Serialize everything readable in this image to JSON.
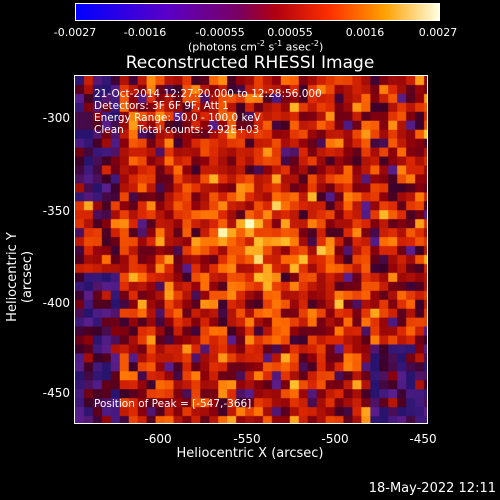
{
  "colorbar": {
    "ticks": [
      "-0.0027",
      "-0.0016",
      "-0.00055",
      "0.00055",
      "0.0016",
      "0.0027"
    ],
    "units_prefix": "(photons cm",
    "units_e1": "-2",
    "units_mid1": " s",
    "units_e2": "-1",
    "units_mid2": " asec",
    "units_e3": "-2",
    "units_suffix": ")"
  },
  "title": "Reconstructed RHESSI Image",
  "info": {
    "line1": "21-Oct-2014 12:27:20.000 to 12:28:56.000",
    "line2": "Detectors: 3F 6F 9F, Att 1",
    "line3": "Energy Range: 50.0 - 100.0 keV",
    "line4": "Clean    Total counts: 2.92E+03",
    "peak": "Position of Peak = [-547,-366]"
  },
  "axes": {
    "xlabel": "Heliocentric X (arcsec)",
    "ylabel": "Heliocentric Y (arcsec)",
    "xticks": [
      "-600",
      "-550",
      "-500",
      "-450"
    ],
    "yticks": [
      "-300",
      "-350",
      "-400",
      "-450"
    ]
  },
  "timestamp": "18-May-2022 12:11"
}
